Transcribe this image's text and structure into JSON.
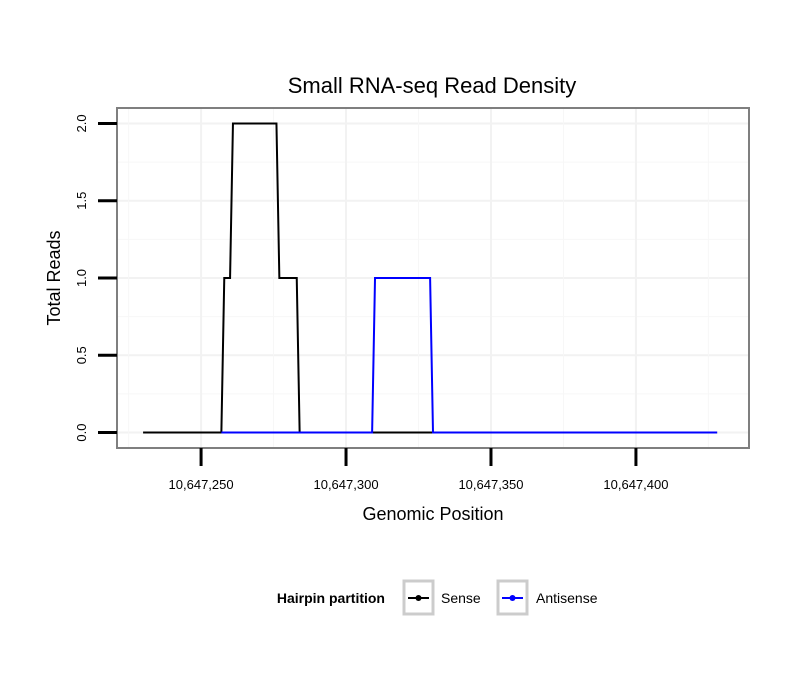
{
  "chart_data": {
    "type": "line",
    "title": "Small RNA-seq Read Density",
    "xlabel": "Genomic Position",
    "ylabel": "Total Reads",
    "xlim": [
      10647221,
      10647439
    ],
    "ylim": [
      -0.1,
      2.1
    ],
    "x_ticks": [
      10647250,
      10647300,
      10647350,
      10647400
    ],
    "x_tick_labels": [
      "10,647,250",
      "10,647,300",
      "10,647,350",
      "10,647,400"
    ],
    "y_ticks": [
      0,
      0.5,
      1,
      1.5,
      2
    ],
    "y_tick_labels": [
      "0.0",
      "0.5",
      "1.0",
      "1.5",
      "2.0"
    ],
    "grid": true,
    "legend": {
      "title": "Hairpin partition",
      "position": "bottom"
    },
    "series": [
      {
        "name": "Sense",
        "color": "#000000",
        "x": [
          10647230,
          10647257,
          10647258,
          10647260,
          10647261,
          10647262,
          10647276,
          10647277,
          10647283,
          10647284,
          10647428
        ],
        "y": [
          0,
          0,
          1,
          1,
          2,
          2,
          2,
          1,
          1,
          0,
          0
        ]
      },
      {
        "name": "Antisense",
        "color": "#0000ff",
        "x": [
          10647257,
          10647309,
          10647310,
          10647329,
          10647330,
          10647428
        ],
        "y": [
          0,
          0,
          1,
          1,
          0,
          0
        ]
      }
    ]
  }
}
